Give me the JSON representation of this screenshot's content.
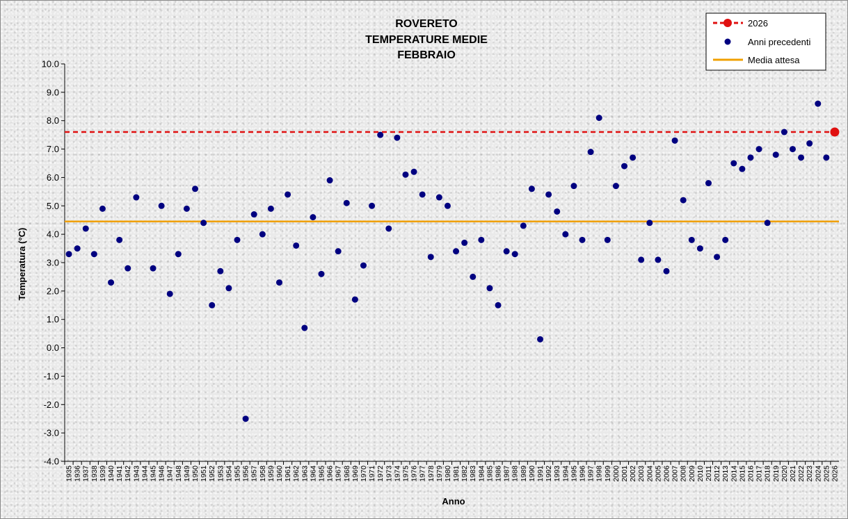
{
  "chart_data": {
    "type": "scatter",
    "title_lines": [
      "ROVERETO",
      "TEMPERATURE MEDIE",
      "FEBBRAIO"
    ],
    "xlabel": "Anno",
    "ylabel": "Temperatura (°C)",
    "ylim": [
      -4.0,
      10.0
    ],
    "yticks": [
      "-4.0",
      "-3.0",
      "-2.0",
      "-1.0",
      "0.0",
      "1.0",
      "2.0",
      "3.0",
      "4.0",
      "5.0",
      "6.0",
      "7.0",
      "8.0",
      "9.0",
      "10.0"
    ],
    "categories": [
      "1935",
      "1936",
      "1937",
      "1938",
      "1939",
      "1940",
      "1941",
      "1942",
      "1943",
      "1944",
      "1945",
      "1946",
      "1947",
      "1948",
      "1949",
      "1950",
      "1951",
      "1952",
      "1953",
      "1954",
      "1955",
      "1956",
      "1957",
      "1958",
      "1959",
      "1960",
      "1961",
      "1962",
      "1963",
      "1964",
      "1965",
      "1966",
      "1967",
      "1968",
      "1969",
      "1970",
      "1971",
      "1972",
      "1973",
      "1974",
      "1975",
      "1976",
      "1977",
      "1978",
      "1979",
      "1980",
      "1981",
      "1982",
      "1983",
      "1984",
      "1985",
      "1986",
      "1987",
      "1988",
      "1989",
      "1990",
      "1991",
      "1992",
      "1993",
      "1994",
      "1995",
      "1996",
      "1997",
      "1998",
      "1999",
      "2000",
      "2001",
      "2002",
      "2003",
      "2004",
      "2005",
      "2006",
      "2007",
      "2008",
      "2009",
      "2010",
      "2011",
      "2012",
      "2013",
      "2014",
      "2015",
      "2016",
      "2017",
      "2018",
      "2019",
      "2020",
      "2021",
      "2022",
      "2023",
      "2024",
      "2025",
      "2026"
    ],
    "series": [
      {
        "name": "Anni precedenti",
        "color": "#000080",
        "marker": "circle",
        "values": [
          3.3,
          3.5,
          4.2,
          3.3,
          4.9,
          2.3,
          3.8,
          2.8,
          5.3,
          null,
          2.8,
          5.0,
          1.9,
          3.3,
          4.9,
          5.6,
          4.4,
          1.5,
          2.7,
          2.1,
          3.8,
          -2.5,
          4.7,
          4.0,
          4.9,
          2.3,
          5.4,
          3.6,
          0.7,
          4.6,
          2.6,
          5.9,
          3.4,
          5.1,
          1.7,
          2.9,
          5.0,
          7.5,
          4.2,
          7.4,
          6.1,
          6.2,
          5.4,
          3.2,
          5.3,
          5.0,
          3.4,
          3.7,
          2.5,
          3.8,
          2.1,
          1.5,
          3.4,
          3.3,
          4.3,
          5.6,
          0.3,
          5.4,
          4.8,
          4.0,
          5.7,
          3.8,
          6.9,
          8.1,
          3.8,
          5.7,
          6.4,
          6.7,
          3.1,
          4.4,
          3.1,
          2.7,
          7.3,
          5.2,
          3.8,
          3.5,
          5.8,
          3.2,
          3.8,
          6.5,
          6.3,
          6.7,
          7.0,
          4.4,
          6.8,
          7.6,
          7.0,
          6.7,
          7.2,
          8.6,
          6.7,
          null
        ]
      },
      {
        "name": "2026",
        "color": "#e01010",
        "marker": "circle-dashed-line",
        "values_point": {
          "x": "2026",
          "y": 7.6
        }
      },
      {
        "name": "Media attesa",
        "color": "#f0a000",
        "marker": "line",
        "y": 4.45
      }
    ],
    "legend": {
      "position": "top-right",
      "entries": [
        "2026",
        "Anni precedenti",
        "Media attesa"
      ]
    },
    "grid": false
  }
}
